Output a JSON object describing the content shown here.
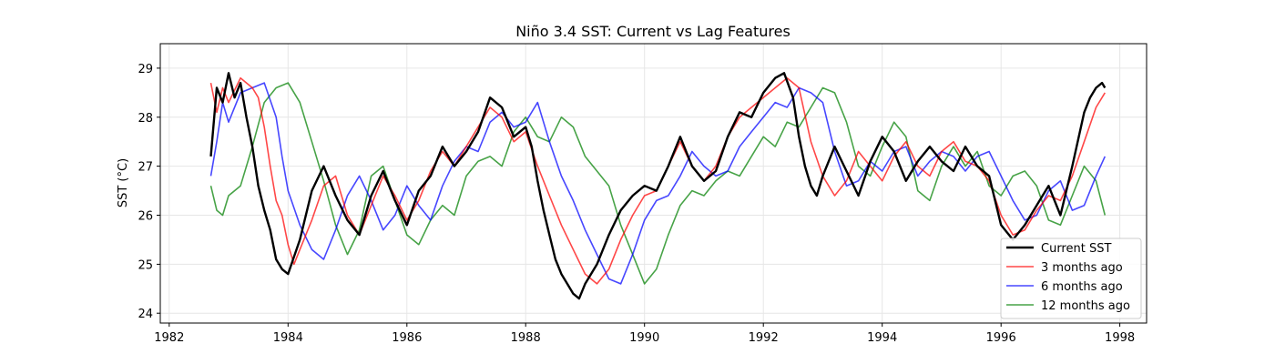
{
  "chart_data": {
    "type": "line",
    "title": "Niño 3.4 SST: Current vs Lag Features",
    "xlabel": "",
    "ylabel": "SST (°C)",
    "xlim": [
      1981.85,
      1998.45
    ],
    "ylim": [
      23.8,
      29.5
    ],
    "x_ticks": [
      1982,
      1984,
      1986,
      1988,
      1990,
      1992,
      1994,
      1996,
      1998
    ],
    "y_ticks": [
      24,
      25,
      26,
      27,
      28,
      29
    ],
    "grid": true,
    "legend_position": "lower-right",
    "series": [
      {
        "name": "Current SST",
        "color": "#000000",
        "linewidth": 2.4,
        "opacity": 1.0,
        "x": [
          1982.7,
          1982.8,
          1982.9,
          1983.0,
          1983.1,
          1983.2,
          1983.3,
          1983.4,
          1983.5,
          1983.6,
          1983.7,
          1983.8,
          1983.9,
          1984.0,
          1984.2,
          1984.4,
          1984.6,
          1984.8,
          1985.0,
          1985.2,
          1985.4,
          1985.6,
          1985.8,
          1986.0,
          1986.2,
          1986.4,
          1986.6,
          1986.8,
          1987.0,
          1987.2,
          1987.4,
          1987.6,
          1987.8,
          1988.0,
          1988.1,
          1988.2,
          1988.3,
          1988.4,
          1988.5,
          1988.6,
          1988.7,
          1988.8,
          1988.9,
          1989.0,
          1989.2,
          1989.4,
          1989.6,
          1989.8,
          1990.0,
          1990.2,
          1990.4,
          1990.6,
          1990.8,
          1991.0,
          1991.2,
          1991.4,
          1991.6,
          1991.8,
          1992.0,
          1992.2,
          1992.35,
          1992.5,
          1992.6,
          1992.7,
          1992.8,
          1992.9,
          1993.0,
          1993.2,
          1993.4,
          1993.6,
          1993.8,
          1994.0,
          1994.2,
          1994.4,
          1994.6,
          1994.8,
          1995.0,
          1995.2,
          1995.4,
          1995.6,
          1995.8,
          1996.0,
          1996.2,
          1996.4,
          1996.6,
          1996.8,
          1997.0,
          1997.2,
          1997.4,
          1997.5,
          1997.6,
          1997.7,
          1997.75
        ],
        "y": [
          27.2,
          28.6,
          28.3,
          28.9,
          28.4,
          28.7,
          28.0,
          27.4,
          26.6,
          26.1,
          25.7,
          25.1,
          24.9,
          24.8,
          25.5,
          26.5,
          27.0,
          26.4,
          25.9,
          25.6,
          26.4,
          26.9,
          26.3,
          25.8,
          26.5,
          26.8,
          27.4,
          27.0,
          27.3,
          27.7,
          28.4,
          28.2,
          27.6,
          27.8,
          27.4,
          26.7,
          26.1,
          25.6,
          25.1,
          24.8,
          24.6,
          24.4,
          24.3,
          24.6,
          25.0,
          25.6,
          26.1,
          26.4,
          26.6,
          26.5,
          27.0,
          27.6,
          27.0,
          26.7,
          26.9,
          27.6,
          28.1,
          28.0,
          28.5,
          28.8,
          28.9,
          28.4,
          27.6,
          27.0,
          26.6,
          26.4,
          26.8,
          27.4,
          26.9,
          26.4,
          27.1,
          27.6,
          27.3,
          26.7,
          27.1,
          27.4,
          27.1,
          26.9,
          27.4,
          27.0,
          26.8,
          25.8,
          25.5,
          25.8,
          26.2,
          26.6,
          26.0,
          27.0,
          28.1,
          28.4,
          28.6,
          28.7,
          28.6
        ]
      },
      {
        "name": "3 months ago",
        "color": "#ff0000",
        "linewidth": 1.6,
        "opacity": 0.72,
        "x": [
          1982.7,
          1982.8,
          1982.9,
          1983.0,
          1983.2,
          1983.4,
          1983.5,
          1983.6,
          1983.7,
          1983.8,
          1983.9,
          1984.0,
          1984.1,
          1984.2,
          1984.4,
          1984.6,
          1984.8,
          1985.0,
          1985.2,
          1985.4,
          1985.6,
          1985.8,
          1986.0,
          1986.2,
          1986.4,
          1986.6,
          1986.8,
          1987.0,
          1987.2,
          1987.4,
          1987.6,
          1987.8,
          1988.0,
          1988.2,
          1988.4,
          1988.6,
          1988.8,
          1989.0,
          1989.2,
          1989.4,
          1989.6,
          1989.8,
          1990.0,
          1990.2,
          1990.4,
          1990.6,
          1990.8,
          1991.0,
          1991.2,
          1991.4,
          1991.6,
          1991.8,
          1992.0,
          1992.2,
          1992.4,
          1992.6,
          1992.8,
          1993.0,
          1993.2,
          1993.4,
          1993.6,
          1993.8,
          1994.0,
          1994.2,
          1994.4,
          1994.6,
          1994.8,
          1995.0,
          1995.2,
          1995.4,
          1995.6,
          1995.8,
          1996.0,
          1996.2,
          1996.4,
          1996.6,
          1996.8,
          1997.0,
          1997.2,
          1997.4,
          1997.6,
          1997.75
        ],
        "y": [
          28.7,
          28.1,
          28.6,
          28.3,
          28.8,
          28.6,
          28.4,
          27.8,
          27.0,
          26.3,
          26.0,
          25.4,
          25.0,
          25.3,
          25.9,
          26.6,
          26.8,
          26.0,
          25.6,
          26.2,
          26.8,
          26.4,
          25.9,
          26.3,
          26.9,
          27.3,
          27.0,
          27.4,
          27.8,
          28.2,
          28.0,
          27.5,
          27.7,
          27.0,
          26.4,
          25.8,
          25.3,
          24.8,
          24.6,
          24.9,
          25.5,
          26.0,
          26.4,
          26.5,
          27.0,
          27.5,
          27.0,
          26.7,
          27.0,
          27.6,
          28.0,
          28.2,
          28.4,
          28.6,
          28.8,
          28.6,
          27.5,
          26.8,
          26.4,
          26.7,
          27.3,
          27.0,
          26.7,
          27.2,
          27.5,
          27.0,
          26.8,
          27.3,
          27.5,
          27.1,
          27.0,
          26.7,
          26.0,
          25.6,
          25.7,
          26.1,
          26.4,
          26.3,
          26.8,
          27.5,
          28.2,
          28.5
        ]
      },
      {
        "name": "6 months ago",
        "color": "#0000ff",
        "linewidth": 1.6,
        "opacity": 0.72,
        "x": [
          1982.7,
          1982.8,
          1982.9,
          1983.0,
          1983.2,
          1983.4,
          1983.6,
          1983.8,
          1983.9,
          1984.0,
          1984.2,
          1984.4,
          1984.6,
          1984.8,
          1985.0,
          1985.2,
          1985.4,
          1985.6,
          1985.8,
          1986.0,
          1986.2,
          1986.4,
          1986.6,
          1986.8,
          1987.0,
          1987.2,
          1987.4,
          1987.6,
          1987.8,
          1988.0,
          1988.2,
          1988.4,
          1988.6,
          1988.8,
          1989.0,
          1989.2,
          1989.4,
          1989.6,
          1989.8,
          1990.0,
          1990.2,
          1990.4,
          1990.6,
          1990.8,
          1991.0,
          1991.2,
          1991.4,
          1991.6,
          1991.8,
          1992.0,
          1992.2,
          1992.4,
          1992.6,
          1992.8,
          1993.0,
          1993.2,
          1993.4,
          1993.6,
          1993.8,
          1994.0,
          1994.2,
          1994.4,
          1994.6,
          1994.8,
          1995.0,
          1995.2,
          1995.4,
          1995.6,
          1995.8,
          1996.0,
          1996.2,
          1996.4,
          1996.6,
          1996.8,
          1997.0,
          1997.2,
          1997.4,
          1997.6,
          1997.75
        ],
        "y": [
          26.8,
          27.5,
          28.3,
          27.9,
          28.5,
          28.6,
          28.7,
          28.0,
          27.2,
          26.5,
          25.8,
          25.3,
          25.1,
          25.7,
          26.4,
          26.8,
          26.3,
          25.7,
          26.0,
          26.6,
          26.2,
          25.9,
          26.6,
          27.1,
          27.4,
          27.3,
          27.9,
          28.1,
          27.8,
          27.9,
          28.3,
          27.5,
          26.8,
          26.3,
          25.7,
          25.2,
          24.7,
          24.6,
          25.2,
          25.9,
          26.3,
          26.4,
          26.8,
          27.3,
          27.0,
          26.8,
          26.9,
          27.4,
          27.7,
          28.0,
          28.3,
          28.2,
          28.6,
          28.5,
          28.3,
          27.3,
          26.6,
          26.7,
          27.1,
          26.9,
          27.3,
          27.4,
          26.8,
          27.1,
          27.3,
          27.2,
          26.9,
          27.2,
          27.3,
          26.8,
          26.3,
          25.9,
          26.0,
          26.5,
          26.7,
          26.1,
          26.2,
          26.8,
          27.2
        ]
      },
      {
        "name": "12 months ago",
        "color": "#008000",
        "linewidth": 1.6,
        "opacity": 0.72,
        "x": [
          1982.7,
          1982.8,
          1982.9,
          1983.0,
          1983.2,
          1983.4,
          1983.6,
          1983.8,
          1984.0,
          1984.2,
          1984.4,
          1984.6,
          1984.8,
          1985.0,
          1985.2,
          1985.4,
          1985.6,
          1985.8,
          1986.0,
          1986.2,
          1986.4,
          1986.6,
          1986.8,
          1987.0,
          1987.2,
          1987.4,
          1987.6,
          1987.8,
          1988.0,
          1988.2,
          1988.4,
          1988.6,
          1988.8,
          1989.0,
          1989.2,
          1989.4,
          1989.6,
          1989.8,
          1990.0,
          1990.2,
          1990.4,
          1990.6,
          1990.8,
          1991.0,
          1991.2,
          1991.4,
          1991.6,
          1991.8,
          1992.0,
          1992.2,
          1992.4,
          1992.6,
          1992.8,
          1993.0,
          1993.2,
          1993.4,
          1993.6,
          1993.8,
          1994.0,
          1994.2,
          1994.4,
          1994.6,
          1994.8,
          1995.0,
          1995.2,
          1995.4,
          1995.6,
          1995.8,
          1996.0,
          1996.2,
          1996.4,
          1996.6,
          1996.8,
          1997.0,
          1997.2,
          1997.4,
          1997.6,
          1997.75
        ],
        "y": [
          26.6,
          26.1,
          26.0,
          26.4,
          26.6,
          27.4,
          28.3,
          28.6,
          28.7,
          28.3,
          27.5,
          26.7,
          25.8,
          25.2,
          25.7,
          26.8,
          27.0,
          26.3,
          25.6,
          25.4,
          25.9,
          26.2,
          26.0,
          26.8,
          27.1,
          27.2,
          27.0,
          27.7,
          28.0,
          27.6,
          27.5,
          28.0,
          27.8,
          27.2,
          26.9,
          26.6,
          25.8,
          25.2,
          24.6,
          24.9,
          25.6,
          26.2,
          26.5,
          26.4,
          26.7,
          26.9,
          26.8,
          27.2,
          27.6,
          27.4,
          27.9,
          27.8,
          28.2,
          28.6,
          28.5,
          27.9,
          27.0,
          26.8,
          27.4,
          27.9,
          27.6,
          26.5,
          26.3,
          27.0,
          27.4,
          27.0,
          27.3,
          26.6,
          26.4,
          26.8,
          26.9,
          26.6,
          25.9,
          25.8,
          26.4,
          27.0,
          26.7,
          26.0
        ]
      }
    ]
  }
}
